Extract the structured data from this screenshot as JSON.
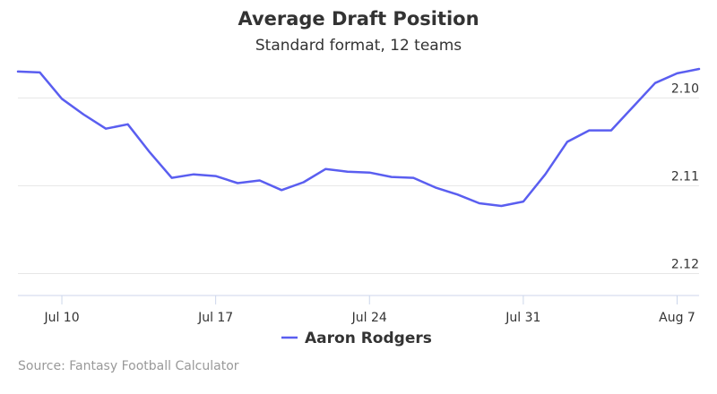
{
  "chart_data": {
    "type": "line",
    "title": "Average Draft Position",
    "subtitle": "Standard format, 12 teams",
    "xlabel": "",
    "ylabel": "",
    "x_axis_type": "date",
    "x_ticks": [
      "Jul 10",
      "Jul 17",
      "Jul 24",
      "Jul 31",
      "Aug 7"
    ],
    "y_ticks": [
      "2.10",
      "2.11",
      "2.12"
    ],
    "ylim": [
      2.0965,
      2.1225
    ],
    "y_reversed": true,
    "grid": true,
    "legend_position": "bottom-center",
    "colors": {
      "series": "#5a5ef0",
      "grid": "#e6e6e6",
      "text": "#333333",
      "source": "#999999"
    },
    "series": [
      {
        "name": "Aaron Rodgers",
        "x": [
          "2017-07-08",
          "2017-07-09",
          "2017-07-10",
          "2017-07-11",
          "2017-07-12",
          "2017-07-13",
          "2017-07-14",
          "2017-07-15",
          "2017-07-16",
          "2017-07-17",
          "2017-07-18",
          "2017-07-19",
          "2017-07-20",
          "2017-07-21",
          "2017-07-22",
          "2017-07-23",
          "2017-07-24",
          "2017-07-25",
          "2017-07-26",
          "2017-07-27",
          "2017-07-28",
          "2017-07-29",
          "2017-07-30",
          "2017-07-31",
          "2017-08-01",
          "2017-08-02",
          "2017-08-03",
          "2017-08-04",
          "2017-08-05",
          "2017-08-06",
          "2017-08-07",
          "2017-08-08"
        ],
        "values": [
          2.097,
          2.0971,
          2.1001,
          2.1019,
          2.1035,
          2.103,
          2.1062,
          2.1091,
          2.1087,
          2.1089,
          2.1097,
          2.1094,
          2.1105,
          2.1096,
          2.1081,
          2.1084,
          2.1085,
          2.109,
          2.1091,
          2.1102,
          2.111,
          2.112,
          2.1123,
          2.1118,
          2.1087,
          2.105,
          2.1037,
          2.1037,
          2.101,
          2.0983,
          2.0972,
          2.0967
        ]
      }
    ]
  },
  "source": "Source: Fantasy Football Calculator"
}
